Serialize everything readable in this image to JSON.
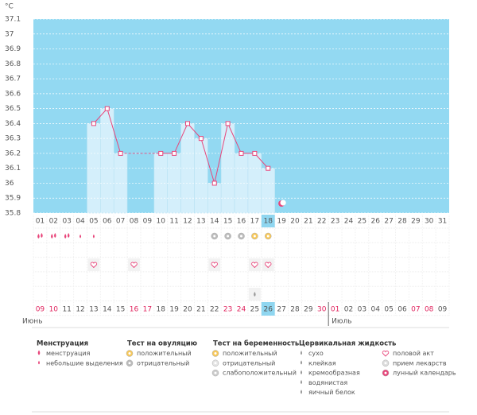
{
  "chart_data": {
    "type": "bar",
    "unit": "°C",
    "categories": [
      "01",
      "02",
      "03",
      "04",
      "05",
      "06",
      "07",
      "08",
      "09",
      "10",
      "11",
      "12",
      "13",
      "14",
      "15",
      "16",
      "17",
      "18",
      "19",
      "20",
      "21",
      "22",
      "23",
      "24",
      "25",
      "26",
      "27",
      "28",
      "29",
      "30",
      "31"
    ],
    "values": [
      null,
      null,
      null,
      null,
      36.4,
      36.5,
      36.2,
      null,
      null,
      36.2,
      36.2,
      36.4,
      36.3,
      36.0,
      36.4,
      36.2,
      36.2,
      36.1,
      null,
      null,
      null,
      null,
      null,
      null,
      null,
      null,
      null,
      null,
      null,
      null,
      null
    ],
    "color": "#d4effb",
    "line_color": "#e8457a",
    "background": "#93d9f2",
    "ylim": [
      35.8,
      37.1
    ],
    "yticks": [
      35.8,
      35.9,
      36,
      36.1,
      36.2,
      36.3,
      36.4,
      36.5,
      36.6,
      36.7,
      36.8,
      36.9,
      37,
      37.1
    ],
    "grid": true
  },
  "calendar": {
    "dates": [
      "09",
      "10",
      "11",
      "12",
      "13",
      "14",
      "15",
      "16",
      "17",
      "18",
      "19",
      "20",
      "21",
      "22",
      "23",
      "24",
      "25",
      "26",
      "27",
      "28",
      "29",
      "30",
      "01",
      "02",
      "03",
      "04",
      "05",
      "06",
      "07",
      "08",
      "09"
    ],
    "months": [
      "Июнь",
      "Июль"
    ]
  },
  "legend": [
    {
      "title": "Менструация",
      "items": [
        "менструация",
        "небольшие выделения"
      ]
    },
    {
      "title": "Тест на овуляцию",
      "items": [
        "положительный",
        "отрицательный"
      ]
    },
    {
      "title": "Тест на беременность",
      "items": [
        "положительный",
        "отрицательный",
        "слабоположительный"
      ]
    },
    {
      "title": "Цервикальная жидкость",
      "items": [
        "сухо",
        "клейкая",
        "кремообразная",
        "водянистая",
        "яичный белок"
      ]
    },
    {
      "items": [
        "половой акт",
        "прием лекарств",
        "лунный календарь"
      ]
    }
  ]
}
